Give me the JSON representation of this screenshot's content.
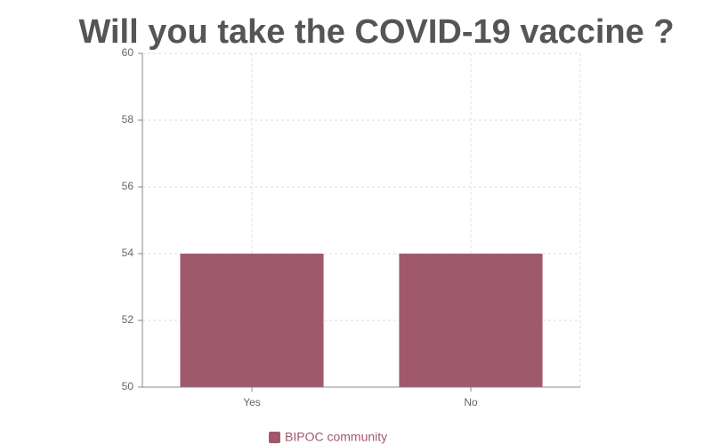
{
  "chart_data": {
    "type": "bar",
    "title": "Will you take the COVID-19 vaccine ?",
    "categories": [
      "Yes",
      "No"
    ],
    "series": [
      {
        "name": "BIPOC community",
        "color": "#a0596b",
        "values": [
          54,
          54
        ]
      }
    ],
    "ylim": [
      50,
      60
    ],
    "yticks": [
      50,
      52,
      54,
      56,
      58,
      60
    ],
    "grid": true,
    "legend": "bottom"
  }
}
